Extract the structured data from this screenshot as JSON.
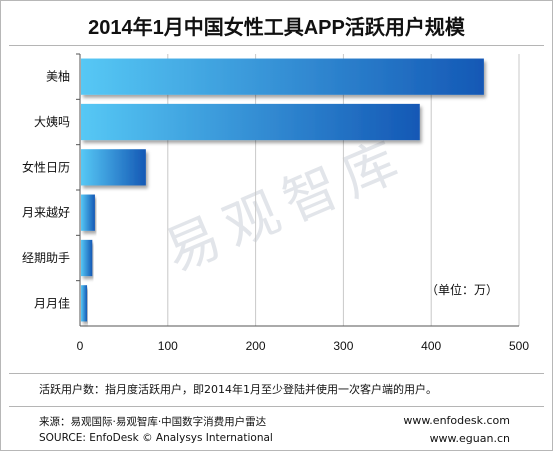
{
  "title": "2014年1月中国女性工具APP活跃用户规模",
  "watermark": "易观智库",
  "unit_label": "（单位：万）",
  "note": "活跃用户数：指月度活跃用户，即2014年1月至少登陆并使用一次客户端的用户。",
  "source_cn": "来源：易观国际·易观智库·中国数字消费用户雷达",
  "source_en": "SOURCE: EnfoDesk © Analysys International",
  "url_1": "www.enfodesk.com",
  "url_2": "www.eguan.cn",
  "colors": {
    "bar_light": "#56c8f5",
    "bar_dark": "#1458b5",
    "grid": "#c8c8c8",
    "axis": "#555555"
  },
  "chart_data": {
    "type": "bar",
    "orientation": "horizontal",
    "categories": [
      "美柚",
      "大姨吗",
      "女性日历",
      "月来越好",
      "经期助手",
      "月月佳"
    ],
    "values": [
      460,
      387,
      75,
      17,
      14,
      8
    ],
    "xlim": [
      0,
      500
    ],
    "xticks": [
      "0",
      "100",
      "200",
      "300",
      "400",
      "500"
    ],
    "grid": true
  }
}
